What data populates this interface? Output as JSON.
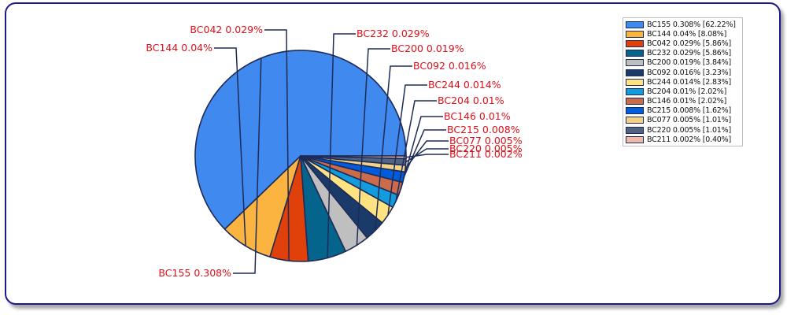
{
  "chart_data": {
    "type": "pie",
    "slices": [
      {
        "label": "BC155 0.308%",
        "legend": "BC155 0.308% [62.22%]",
        "value": 62.22,
        "color": "#4089ee"
      },
      {
        "label": "BC144 0.04%",
        "legend": "BC144 0.04% [8.08%]",
        "value": 8.08,
        "color": "#fcb441"
      },
      {
        "label": "BC042 0.029%",
        "legend": "BC042 0.029% [5.86%]",
        "value": 5.86,
        "color": "#e0400a"
      },
      {
        "label": "BC232 0.029%",
        "legend": "BC232 0.029% [5.86%]",
        "value": 5.86,
        "color": "#05648c"
      },
      {
        "label": "BC200 0.019%",
        "legend": "BC200 0.019% [3.84%]",
        "value": 3.84,
        "color": "#bfbfbf"
      },
      {
        "label": "BC092 0.016%",
        "legend": "BC092 0.016% [3.23%]",
        "value": 3.23,
        "color": "#1a3b69"
      },
      {
        "label": "BC244 0.014%",
        "legend": "BC244 0.014% [2.83%]",
        "value": 2.83,
        "color": "#ffe382"
      },
      {
        "label": "BC204 0.01%",
        "legend": "BC204 0.01% [2.02%]",
        "value": 2.02,
        "color": "#129cdd"
      },
      {
        "label": "BC146 0.01%",
        "legend": "BC146 0.01% [2.02%]",
        "value": 2.02,
        "color": "#ca6b4b"
      },
      {
        "label": "BC215 0.008%",
        "legend": "BC215 0.008% [1.62%]",
        "value": 1.62,
        "color": "#005cdb"
      },
      {
        "label": "BC077 0.005%",
        "legend": "BC077 0.005% [1.01%]",
        "value": 1.01,
        "color": "#f3d288"
      },
      {
        "label": "BC220 0.005%",
        "legend": "BC220 0.005% [1.01%]",
        "value": 1.01,
        "color": "#506381"
      },
      {
        "label": "BC211 0.002%",
        "legend": "BC211 0.002% [0.40%]",
        "value": 0.4,
        "color": "#f1b9a8"
      }
    ],
    "start_angle_deg": 0,
    "direction": "counterclockwise",
    "legend_position": "top-right",
    "outline_color": "#1e2b57",
    "label_color": "#e0101a"
  }
}
